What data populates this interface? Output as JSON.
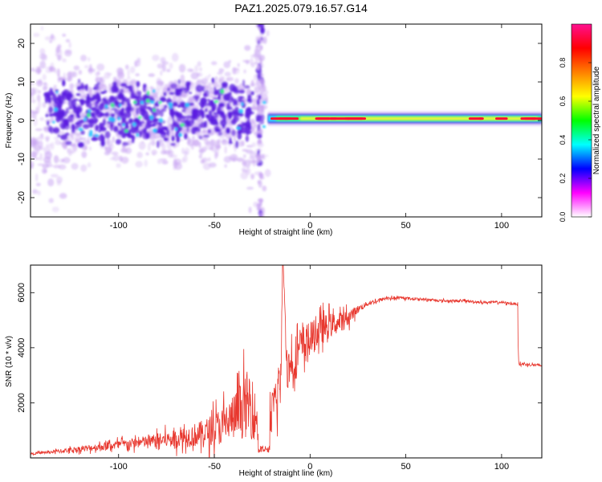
{
  "figure": {
    "title": "PAZ1.2025.079.16.57.G14"
  },
  "colors": {
    "spectrogram_low": "#c9a6f2",
    "spectrogram_core": "#5b1ee0",
    "line_trace": "#e8382f",
    "ridge": "#ff1030"
  },
  "chart_data": [
    {
      "type": "heatmap",
      "title": "PAZ1.2025.079.16.57.G14",
      "xlabel": "Height of straight line (km)",
      "ylabel": "Frequency (Hz)",
      "xlim": [
        -146,
        121
      ],
      "ylim": [
        -25,
        25
      ],
      "xticks": [
        -100,
        -50,
        0,
        50,
        100
      ],
      "yticks": [
        -20,
        -10,
        0,
        10,
        20
      ],
      "grid": false,
      "colorbar": {
        "label": "Normalized spectral amplitude",
        "range": [
          0,
          1
        ],
        "ticks": [
          "0.0",
          "0.2",
          "0.4",
          "0.6",
          "0.8"
        ],
        "colors": [
          "#ffffff",
          "#ff00ff",
          "#0000ff",
          "#00ffff",
          "#00ff00",
          "#ffff00",
          "#ff8000",
          "#ff0000",
          "#ff1090"
        ]
      },
      "description_values": {
        "noise_region_x": [
          -146,
          -22
        ],
        "noise_center_freq": 2,
        "ridge_region_x": [
          -22,
          121
        ],
        "ridge_freq": 0.5
      }
    },
    {
      "type": "line",
      "xlabel": "Height of straight line (km)",
      "ylabel": "SNR (10 * v/v)",
      "xlim": [
        -146,
        121
      ],
      "ylim": [
        0,
        7000
      ],
      "xticks": [
        -100,
        -50,
        0,
        50,
        100
      ],
      "yticks": [
        2000,
        4000,
        6000
      ],
      "grid": false,
      "series": [
        {
          "x": [
            -146,
            -130,
            -110,
            -90,
            -70,
            -55,
            -45,
            -38,
            -32,
            -28,
            -25,
            -20,
            -15,
            -14,
            -12,
            -10,
            -5,
            0,
            5,
            10,
            15,
            20,
            25,
            30,
            35,
            40,
            50,
            60,
            70,
            80,
            90,
            100,
            105,
            108,
            109,
            112,
            121
          ],
          "y": [
            150,
            250,
            400,
            550,
            700,
            900,
            1200,
            1600,
            2000,
            1400,
            200,
            1500,
            3000,
            7000,
            3200,
            3400,
            4000,
            4300,
            4600,
            4800,
            4900,
            5100,
            5400,
            5600,
            5700,
            5800,
            5800,
            5750,
            5700,
            5700,
            5650,
            5650,
            5600,
            5600,
            3400,
            3400,
            3350
          ],
          "noise": [
            40,
            80,
            150,
            220,
            350,
            550,
            800,
            1000,
            1400,
            900,
            100,
            800,
            1200,
            0,
            800,
            900,
            900,
            700,
            600,
            500,
            400,
            300,
            150,
            100,
            80,
            60,
            50,
            50,
            50,
            50,
            50,
            50,
            50,
            50,
            60,
            60,
            60
          ]
        }
      ]
    }
  ]
}
